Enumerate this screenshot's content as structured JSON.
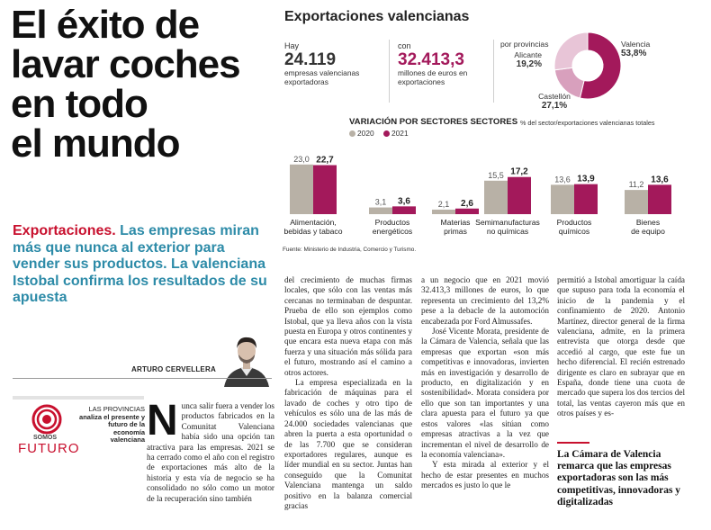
{
  "headline": {
    "lines": [
      "El éxito de",
      "lavar coches",
      "en todo",
      "el mundo"
    ]
  },
  "subhead": {
    "kicker": "Exportaciones.",
    "text": " Las empresas miran más que nunca al exterior para vender sus productos. La valenciana Istobal confirma los resultados de su apuesta"
  },
  "byline": "ARTURO CERVELLERA",
  "promo": {
    "logo_small": "SOMOS",
    "logo_big": "FUTURO",
    "text_lite": "LAS PROVINCIAS",
    "text_bold": "analiza el presente y futuro de la economía valenciana"
  },
  "infographic": {
    "title": "Exportaciones valencianas",
    "stat1": {
      "pre": "Hay",
      "num": "24.119",
      "post": "empresas valencianas exportadoras"
    },
    "stat2": {
      "pre": "con",
      "num": "32.413,3",
      "post": "millones de euros en exportaciones"
    },
    "pie": {
      "header": "por provincias",
      "slices": [
        {
          "name": "Valencia",
          "value": "53,8%",
          "color": "#a3195b"
        },
        {
          "name": "Alicante",
          "value": "19,2%",
          "color": "#d8a0bd"
        },
        {
          "name": "Castellón",
          "value": "27,1%",
          "color": "#e8c5d7"
        }
      ]
    },
    "variation_title": "VARIACIÓN POR SECTORES SECTORES",
    "variation_sub": "% del sector/exportaciones valencianas totales",
    "source": "Fuente: Ministerio de Industria, Comercio y Turismo."
  },
  "chart_data": {
    "type": "bar",
    "categories": [
      [
        "Alimentación,",
        "bebidas y tabaco"
      ],
      [
        "Productos",
        "energéticos"
      ],
      [
        "Materias",
        "primas"
      ],
      [
        "Semimanufacturas",
        "no químicas"
      ],
      [
        "Productos",
        "químicos"
      ],
      [
        "Bienes",
        "de equipo"
      ]
    ],
    "series": [
      {
        "name": "2020",
        "color": "#b8b1a6",
        "values": [
          23.0,
          3.1,
          2.1,
          15.5,
          13.6,
          11.2
        ],
        "labels": [
          "23,0",
          "3,1",
          "2,1",
          "15,5",
          "13,6",
          "11,2"
        ]
      },
      {
        "name": "2021",
        "color": "#a3195b",
        "values": [
          22.7,
          3.6,
          2.6,
          17.2,
          13.9,
          13.6
        ],
        "labels": [
          "22,7",
          "3,6",
          "2,6",
          "17,2",
          "13,9",
          "13,6"
        ]
      }
    ],
    "ylim": [
      0,
      25
    ]
  },
  "body": {
    "col1": "unca salir fuera a vender los productos fabricados en la Comunitat Valenciana había sido una opción tan atractiva para las empresas. 2021 se ha cerrado como el año con el registro de exportaciones más alto de la historia y esta vía de negocio se ha consolidado no sólo como un motor de la recuperación sino también",
    "col1_dropcap": "N",
    "col2": [
      "del crecimiento de muchas firmas locales, que sólo con las ventas más cercanas no terminaban de despuntar. Prueba de ello son ejemplos como Istobal, que ya lleva años con la vista puesta en Europa y otros continentes y que encara esta nueva etapa con más fuerza y una situación más sólida para el futuro, mostrando así el camino a otros actores.",
      "La empresa especializada en la fabricación de máquinas para el lavado de coches y otro tipo de vehículos es sólo una de las más de 24.000 sociedades valencianas que abren la puerta a esta oportunidad o de las 7.700 que se consideran exportadores regulares, aunque es líder mundial en su sector. Juntas han conseguido que la Comunitat Valenciana mantenga un saldo positivo en la balanza comercial gracias"
    ],
    "col3": [
      "a un negocio que en 2021 movió 32.413,3 millones de euros, lo que representa un crecimiento del 13,2% pese a la debacle de la automoción encabezada por Ford Almussafes.",
      "José Vicente Morata, presidente de la Cámara de Valencia, señala que las empresas que exportan «son más competitivas e innovadoras, invierten más en investigación y desarrollo de producto, en digitalización y en sostenibilidad». Morata considera por ello que son tan importantes y una clara apuesta para el futuro ya que estos valores «las sitúan como empresas atractivas a la vez que incrementan el nivel de desarrollo de la economía valenciana».",
      "Y esta mirada al exterior y el hecho de estar presentes en muchos mercados es justo lo que le"
    ],
    "col4": [
      "permitió a Istobal amortiguar la caída que supuso para toda la economía el inicio de la pandemia y el confinamiento de 2020. Antonio Martínez, director general de la firma valenciana, admite, en la primera entrevista que otorga desde que accedió al cargo, que este fue un hecho diferencial. El recién estrenado dirigente es claro en subrayar que en España, donde tiene una cuota de mercado que supera los dos tercios del total, las ventas cayeron más que en otros países y es-"
    ]
  },
  "pull_quote": "La Cámara de Valencia remarca que las empresas exportadoras son las más competitivas, innovadoras y digitalizadas"
}
